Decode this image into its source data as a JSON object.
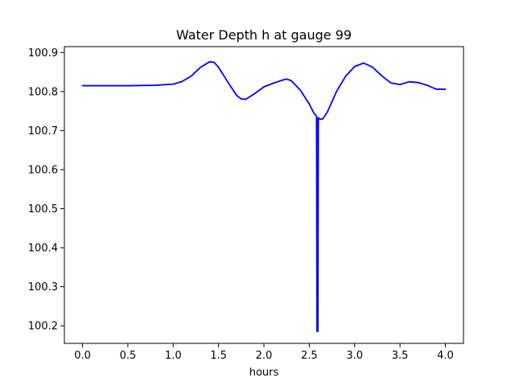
{
  "chart_data": {
    "type": "line",
    "title": "Water Depth h at gauge 99",
    "xlabel": "hours",
    "ylabel": "",
    "xlim": [
      -0.2,
      4.2
    ],
    "ylim": [
      100.155,
      100.915
    ],
    "grid": false,
    "legend": "none",
    "x_ticks": [
      0.0,
      0.5,
      1.0,
      1.5,
      2.0,
      2.5,
      3.0,
      3.5,
      4.0
    ],
    "x_tick_labels": [
      "0.0",
      "0.5",
      "1.0",
      "1.5",
      "2.0",
      "2.5",
      "3.0",
      "3.5",
      "4.0"
    ],
    "y_ticks": [
      100.2,
      100.3,
      100.4,
      100.5,
      100.6,
      100.7,
      100.8,
      100.9
    ],
    "y_tick_labels": [
      "100.2",
      "100.3",
      "100.4",
      "100.5",
      "100.6",
      "100.7",
      "100.8",
      "100.9"
    ],
    "series": [
      {
        "color": "#0000ff",
        "x": [
          0.0,
          0.5,
          0.8,
          1.0,
          1.1,
          1.2,
          1.3,
          1.4,
          1.45,
          1.5,
          1.6,
          1.7,
          1.75,
          1.8,
          1.9,
          2.0,
          2.1,
          2.2,
          2.25,
          2.3,
          2.4,
          2.5,
          2.55,
          2.58,
          2.585,
          2.59,
          2.595,
          2.6,
          2.62,
          2.65,
          2.7,
          2.8,
          2.9,
          3.0,
          3.1,
          3.2,
          3.3,
          3.4,
          3.5,
          3.6,
          3.7,
          3.8,
          3.9,
          4.0
        ],
        "y": [
          100.815,
          100.815,
          100.816,
          100.819,
          100.826,
          100.84,
          100.862,
          100.876,
          100.875,
          100.862,
          100.825,
          100.79,
          100.781,
          100.78,
          100.795,
          100.812,
          100.821,
          100.829,
          100.832,
          100.828,
          100.804,
          100.768,
          100.745,
          100.737,
          100.186,
          100.732,
          100.186,
          100.733,
          100.729,
          100.73,
          100.748,
          100.8,
          100.839,
          100.864,
          100.873,
          100.862,
          100.84,
          100.822,
          100.818,
          100.825,
          100.823,
          100.816,
          100.806,
          100.806
        ]
      }
    ]
  }
}
